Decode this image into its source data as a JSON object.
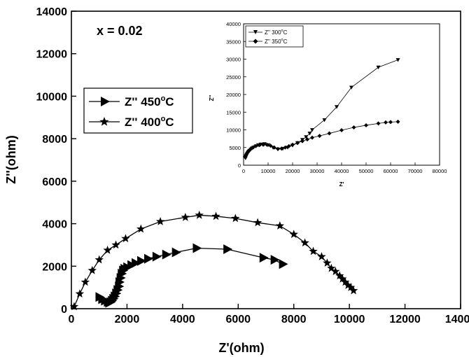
{
  "chart_data": {
    "type": "scatter",
    "annotation": "x = 0.02",
    "main": {
      "xlabel": "Z'(ohm)",
      "ylabel": "Z''(ohm)",
      "xlim": [
        0,
        14000
      ],
      "ylim": [
        0,
        14000
      ],
      "xticks": [
        0,
        2000,
        4000,
        6000,
        8000,
        10000,
        12000,
        14000
      ],
      "yticks": [
        0,
        2000,
        4000,
        6000,
        8000,
        10000,
        12000,
        14000
      ],
      "legend": [
        {
          "label": "Z'' 450",
          "unit": "C",
          "marker": "triangle-right"
        },
        {
          "label": "Z'' 400",
          "unit": "C",
          "marker": "star"
        }
      ],
      "series": [
        {
          "name": "Z'' 450 oC",
          "marker": "triangle-right",
          "x": [
            1000,
            1100,
            1200,
            1300,
            1350,
            1400,
            1450,
            1500,
            1550,
            1600,
            1650,
            1700,
            1720,
            1760,
            1800,
            1850,
            1900,
            2000,
            2150,
            2300,
            2500,
            2750,
            3050,
            3400,
            3750,
            4500,
            5600,
            6900,
            7300,
            7600
          ],
          "y": [
            550,
            450,
            380,
            320,
            280,
            310,
            380,
            470,
            580,
            720,
            880,
            1050,
            1250,
            1450,
            1650,
            1800,
            1880,
            1950,
            2050,
            2150,
            2250,
            2350,
            2450,
            2550,
            2650,
            2850,
            2800,
            2400,
            2300,
            2100
          ]
        },
        {
          "name": "Z'' 400 oC",
          "marker": "star",
          "x": [
            100,
            300,
            500,
            750,
            1000,
            1300,
            1600,
            1950,
            2500,
            3200,
            4100,
            4600,
            5200,
            5900,
            6700,
            7500,
            8000,
            8400,
            8700,
            9000,
            9200,
            9350,
            9500,
            9650,
            9750,
            9850,
            9950,
            10050,
            10150
          ],
          "y": [
            100,
            700,
            1250,
            1800,
            2300,
            2750,
            3000,
            3300,
            3750,
            4100,
            4300,
            4400,
            4350,
            4250,
            4050,
            3900,
            3500,
            3100,
            2700,
            2450,
            2150,
            1900,
            1750,
            1550,
            1400,
            1250,
            1100,
            1000,
            850
          ]
        }
      ]
    },
    "inset": {
      "xlabel": "Z'",
      "ylabel": "Z''",
      "xlim": [
        0,
        80000
      ],
      "ylim": [
        0,
        40000
      ],
      "xticks": [
        0,
        10000,
        20000,
        30000,
        40000,
        50000,
        60000,
        70000,
        80000
      ],
      "yticks": [
        0,
        5000,
        10000,
        15000,
        20000,
        25000,
        30000,
        35000,
        40000
      ],
      "legend": [
        {
          "label": "Z'' 300",
          "unit": "C",
          "marker": "triangle-down"
        },
        {
          "label": "Z'' 350",
          "unit": "C",
          "marker": "diamond"
        }
      ],
      "series": [
        {
          "name": "Z'' 300 oC",
          "marker": "triangle-down",
          "x": [
            800,
            1200,
            1600,
            2000,
            2500,
            3000,
            3500,
            4000,
            5000,
            6000,
            7000,
            8500,
            10000,
            12000,
            14000,
            16000,
            18000,
            20000,
            22000,
            24000,
            25500,
            27000,
            28000,
            33000,
            38000,
            44000,
            55000,
            63000
          ],
          "y": [
            2000,
            2700,
            3300,
            3700,
            4100,
            4500,
            4800,
            5000,
            5400,
            5700,
            5900,
            6000,
            5700,
            5000,
            4500,
            4700,
            5000,
            5600,
            6300,
            7200,
            8000,
            9000,
            10000,
            12800,
            16500,
            22000,
            27700,
            29800
          ]
        },
        {
          "name": "Z'' 350 oC",
          "marker": "diamond",
          "x": [
            500,
            800,
            1200,
            1600,
            2000,
            3000,
            4000,
            5000,
            6500,
            8000,
            9500,
            11000,
            12500,
            14000,
            15500,
            17000,
            18500,
            20000,
            22000,
            24000,
            26000,
            28000,
            31000,
            35000,
            40000,
            45000,
            50000,
            55000,
            58000,
            60000,
            63000
          ],
          "y": [
            2400,
            2800,
            3300,
            3700,
            4100,
            4700,
            5100,
            5400,
            5700,
            5800,
            5800,
            5500,
            5000,
            4600,
            4700,
            5000,
            5400,
            5800,
            6300,
            6800,
            7300,
            7800,
            8300,
            9000,
            9900,
            10700,
            11300,
            11800,
            12100,
            12200,
            12300
          ]
        }
      ]
    }
  }
}
